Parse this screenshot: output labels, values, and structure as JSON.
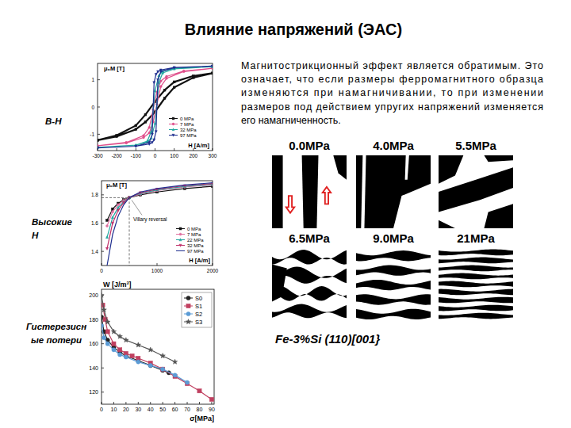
{
  "slide": {
    "title": "Влияние напряжений (ЭАС)",
    "paragraph": [
      "Магнитострикционный эффект является обратимым. Это",
      "означает, что если размеры ферромагнитного образца",
      "изменяются при намагничивании, то при изменении",
      "размеров под действием упругих напряжений изменяется",
      "его намагниченность."
    ],
    "side_labels": {
      "bh": [
        "B-H"
      ],
      "high_h": [
        "Высокие",
        "H"
      ],
      "losses": [
        "Гистерезисн",
        "ые потери"
      ]
    },
    "domains": {
      "panels": [
        "0.0MPa",
        "4.0MPa",
        "5.5MPa",
        "6.5MPa",
        "9.0MPa",
        "21MPa"
      ],
      "caption": "Fe-3%Si (110)[001}"
    }
  },
  "chart_data": [
    {
      "type": "line",
      "y_label": "μ₀M [T]",
      "x_label": "H [A/m]",
      "xlim": [
        -300,
        300
      ],
      "ylim": [
        -1.6,
        1.6
      ],
      "xticks": [
        -300,
        -200,
        -100,
        0,
        100,
        200,
        300
      ],
      "yticks": [
        -1,
        0,
        1
      ],
      "grid": false,
      "legend": "lower right",
      "series": [
        {
          "name": "0 MPa",
          "color": "#111111",
          "marker": "square",
          "x": [
            -300,
            -200,
            -100,
            -50,
            0,
            50,
            100,
            200,
            300,
            300,
            200,
            100,
            50,
            0,
            -50,
            -100,
            -200,
            -300
          ],
          "values": [
            -1.22,
            -1.08,
            -0.82,
            -0.55,
            -0.18,
            0.32,
            0.72,
            1.08,
            1.24,
            1.24,
            1.14,
            0.92,
            0.62,
            0.2,
            -0.28,
            -0.68,
            -1.04,
            -1.22
          ]
        },
        {
          "name": "7 MPa",
          "color": "#e0508c",
          "marker": "circle",
          "x": [
            -300,
            -150,
            -60,
            -30,
            -10,
            10,
            30,
            60,
            150,
            300,
            300,
            150,
            60,
            30,
            10,
            -10,
            -30,
            -60,
            -150,
            -300
          ],
          "values": [
            -1.42,
            -1.32,
            -1.12,
            -0.95,
            -0.55,
            0.1,
            0.75,
            1.05,
            1.3,
            1.42,
            1.42,
            1.32,
            1.12,
            0.95,
            0.55,
            -0.1,
            -0.75,
            -1.05,
            -1.3,
            -1.42
          ]
        },
        {
          "name": "32 MPa",
          "color": "#22a7a0",
          "marker": "triangle",
          "x": [
            -300,
            -100,
            -40,
            -20,
            0,
            20,
            40,
            100,
            300,
            300,
            100,
            40,
            20,
            0,
            -20,
            -40,
            -100,
            -300
          ],
          "values": [
            -1.48,
            -1.4,
            -1.28,
            -1.15,
            -0.6,
            0.9,
            1.25,
            1.4,
            1.48,
            1.48,
            1.42,
            1.32,
            1.15,
            0.6,
            -0.9,
            -1.25,
            -1.4,
            -1.48
          ]
        },
        {
          "name": "97 MPa",
          "color": "#1f2f8f",
          "marker": "triangle-down",
          "x": [
            -300,
            -100,
            -30,
            -15,
            -5,
            5,
            15,
            30,
            100,
            300,
            300,
            100,
            30,
            15,
            5,
            -5,
            -15,
            -30,
            -100,
            -300
          ],
          "values": [
            -1.5,
            -1.44,
            -1.36,
            -1.3,
            -1.2,
            -0.9,
            1.0,
            1.3,
            1.44,
            1.5,
            1.5,
            1.45,
            1.36,
            1.3,
            1.2,
            0.9,
            -1.0,
            -1.3,
            -1.44,
            -1.5
          ]
        }
      ]
    },
    {
      "type": "line",
      "y_label": "μ₀M [T]",
      "x_label": "H [A/m]",
      "xlim": [
        0,
        2000
      ],
      "ylim": [
        1.3,
        1.9
      ],
      "xticks": [
        0,
        1000,
        2000
      ],
      "yticks": [
        1.4,
        1.6,
        1.8
      ],
      "grid": false,
      "legend": "lower right",
      "annotation": {
        "text": "Villary reversal",
        "x": 500,
        "y": 1.78
      },
      "x": [
        100,
        200,
        300,
        400,
        500,
        700,
        1000,
        1500,
        2000
      ],
      "series": [
        {
          "name": "0 MPa",
          "color": "#111111",
          "marker": "square",
          "values": [
            1.62,
            1.7,
            1.74,
            1.765,
            1.78,
            1.8,
            1.82,
            1.845,
            1.86
          ]
        },
        {
          "name": "7 MPa",
          "color": "#e070a0",
          "marker": "circle",
          "values": [
            1.58,
            1.68,
            1.73,
            1.76,
            1.78,
            1.805,
            1.83,
            1.855,
            1.87
          ]
        },
        {
          "name": "22 MPa",
          "color": "#22a7a0",
          "marker": "triangle",
          "values": [
            1.5,
            1.64,
            1.71,
            1.75,
            1.78,
            1.81,
            1.835,
            1.86,
            1.875
          ]
        },
        {
          "name": "32 MPa",
          "color": "#c0306a",
          "marker": "triangle-down",
          "values": [
            1.42,
            1.6,
            1.69,
            1.745,
            1.78,
            1.815,
            1.84,
            1.865,
            1.88
          ]
        },
        {
          "name": "97 MPa",
          "color": "#1f2f8f",
          "marker": "none",
          "values": [
            1.3,
            1.52,
            1.65,
            1.73,
            1.78,
            1.82,
            1.845,
            1.87,
            1.885
          ]
        }
      ]
    },
    {
      "type": "line",
      "y_label": "W [J/m³]",
      "x_label": "σ[MPa]",
      "xlim": [
        0,
        92
      ],
      "ylim": [
        110,
        205
      ],
      "xticks": [
        0,
        10,
        20,
        30,
        40,
        50,
        60,
        70,
        80,
        90
      ],
      "yticks": [
        120,
        140,
        160,
        180,
        200
      ],
      "grid": false,
      "legend": "upper right",
      "series": [
        {
          "name": "S0",
          "color": "#222222",
          "marker": "circle",
          "x": [
            0,
            2,
            5,
            10,
            15,
            20,
            30,
            40,
            50,
            55
          ],
          "values": [
            182,
            170,
            163,
            157,
            153,
            150,
            146,
            142,
            138,
            136
          ]
        },
        {
          "name": "S1",
          "color": "#c04060",
          "marker": "square",
          "x": [
            1,
            3,
            5,
            10,
            15,
            20,
            25,
            30,
            40,
            50,
            60,
            70,
            80,
            90
          ],
          "values": [
            192,
            180,
            170,
            160,
            155,
            152,
            150,
            148,
            144,
            139,
            133,
            127,
            121,
            114
          ]
        },
        {
          "name": "S2",
          "color": "#5b9bd5",
          "marker": "circle",
          "x": [
            0,
            2,
            5,
            10,
            15,
            20,
            30,
            40,
            50,
            60,
            70
          ],
          "values": [
            175,
            165,
            160,
            155,
            151,
            149,
            145,
            142,
            139,
            134,
            128
          ]
        },
        {
          "name": "S3",
          "color": "#555555",
          "marker": "star",
          "x": [
            0,
            2,
            5,
            10,
            15,
            20,
            30,
            40,
            50,
            60
          ],
          "values": [
            200,
            188,
            178,
            170,
            166,
            163,
            159,
            155,
            150,
            145
          ]
        }
      ]
    }
  ]
}
